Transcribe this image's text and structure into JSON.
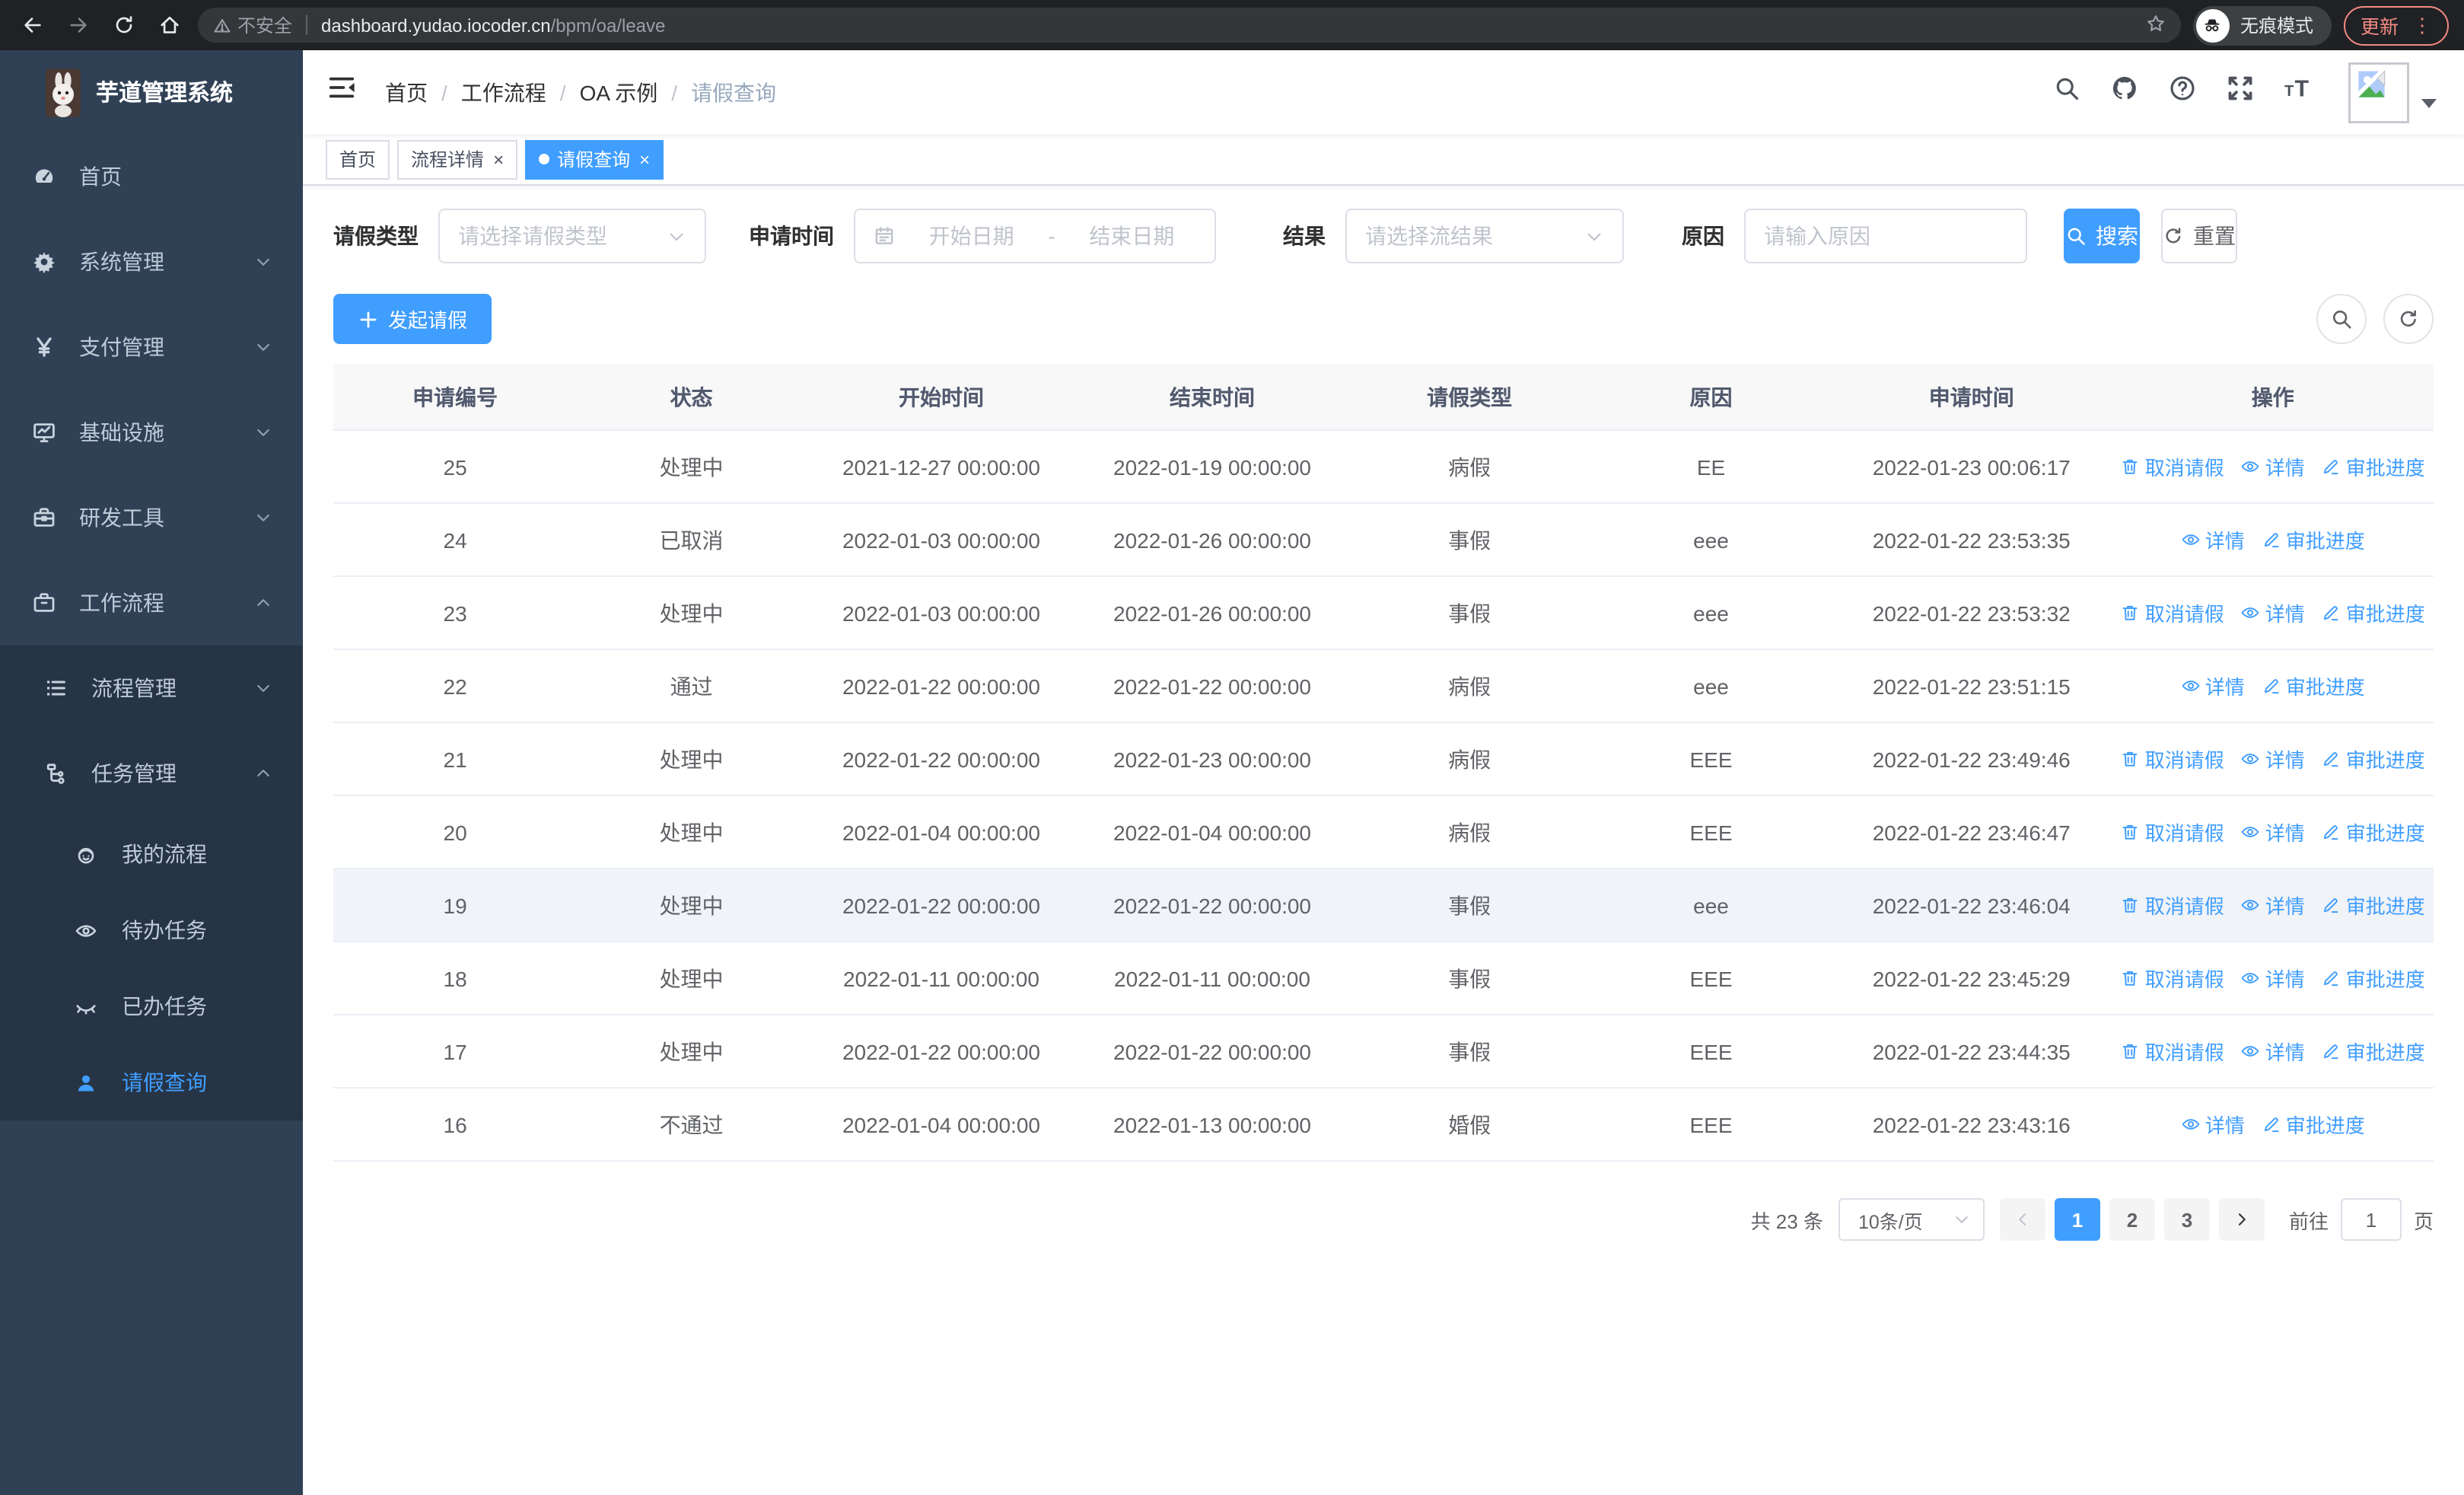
{
  "colors": {
    "primary": "#409EFF",
    "sidebar_bg": "#304156",
    "sidebar_submenu_bg": "#263445",
    "table_header_bg": "#f8f8f9",
    "chrome_bg": "#202124",
    "update_accent": "#f28b82",
    "action_link": "#409EFF"
  },
  "browser": {
    "security_label": "不安全",
    "url_host": "dashboard.yudao.iocoder.cn",
    "url_path": "/bpm/oa/leave",
    "incognito_label": "无痕模式",
    "update_label": "更新",
    "menu_dots": "⋮"
  },
  "app": {
    "logo_title": "芋道管理系统"
  },
  "breadcrumb": {
    "items": [
      "首页",
      "工作流程",
      "OA 示例",
      "请假查询"
    ],
    "separator": "/"
  },
  "sidebar": {
    "items": [
      {
        "key": "home",
        "label": "首页",
        "icon": "dashboard-icon",
        "level": 1,
        "chevron": "",
        "active": false
      },
      {
        "key": "system",
        "label": "系统管理",
        "icon": "gear-icon",
        "level": 1,
        "chevron": "down",
        "active": false
      },
      {
        "key": "payment",
        "label": "支付管理",
        "icon": "yen-icon",
        "level": 1,
        "chevron": "down",
        "active": false
      },
      {
        "key": "infrastructure",
        "label": "基础设施",
        "icon": "monitor-icon",
        "level": 1,
        "chevron": "down",
        "active": false
      },
      {
        "key": "dev-tools",
        "label": "研发工具",
        "icon": "toolbox-icon",
        "level": 1,
        "chevron": "down",
        "active": false
      },
      {
        "key": "workflow",
        "label": "工作流程",
        "icon": "briefcase-icon",
        "level": 1,
        "chevron": "up",
        "active": false
      },
      {
        "key": "process-management",
        "label": "流程管理",
        "icon": "tree-list-icon",
        "level": 2,
        "chevron": "down",
        "active": false
      },
      {
        "key": "task-management",
        "label": "任务管理",
        "icon": "org-icon",
        "level": 2,
        "chevron": "up",
        "active": false
      },
      {
        "key": "my-process",
        "label": "我的流程",
        "icon": "face-icon",
        "level": 3,
        "chevron": "",
        "active": false
      },
      {
        "key": "todo-task",
        "label": "待办任务",
        "icon": "eye-open-icon",
        "level": 3,
        "chevron": "",
        "active": false
      },
      {
        "key": "done-task",
        "label": "已办任务",
        "icon": "eye-closed-icon",
        "level": 3,
        "chevron": "",
        "active": false
      },
      {
        "key": "leave-query",
        "label": "请假查询",
        "icon": "user-icon",
        "level": 3,
        "chevron": "",
        "active": true
      }
    ]
  },
  "tabs": [
    {
      "key": "home",
      "label": "首页",
      "closable": false,
      "active": false
    },
    {
      "key": "process-detail",
      "label": "流程详情",
      "closable": true,
      "active": false
    },
    {
      "key": "leave-query",
      "label": "请假查询",
      "closable": true,
      "active": true
    }
  ],
  "filters": {
    "leave_type_label": "请假类型",
    "leave_type_placeholder": "请选择请假类型",
    "apply_time_label": "申请时间",
    "start_date_placeholder": "开始日期",
    "range_separator": "-",
    "end_date_placeholder": "结束日期",
    "result_label": "结果",
    "result_placeholder": "请选择流结果",
    "reason_label": "原因",
    "reason_placeholder": "请输入原因",
    "search_label": "搜索",
    "reset_label": "重置"
  },
  "toolbar": {
    "create_label": "发起请假"
  },
  "table": {
    "columns": [
      "申请编号",
      "状态",
      "开始时间",
      "结束时间",
      "请假类型",
      "原因",
      "申请时间",
      "操作"
    ],
    "action_labels": {
      "cancel": "取消请假",
      "detail": "详情",
      "progress": "审批进度"
    },
    "action_icons": {
      "cancel": "trash-icon",
      "detail": "view-icon",
      "progress": "edit-icon"
    },
    "rows": [
      {
        "id": "25",
        "status": "处理中",
        "start": "2021-12-27 00:00:00",
        "end": "2022-01-19 00:00:00",
        "type": "病假",
        "reason": "EE",
        "apply_time": "2022-01-23 00:06:17",
        "actions": [
          "cancel",
          "detail",
          "progress"
        ],
        "highlight": false
      },
      {
        "id": "24",
        "status": "已取消",
        "start": "2022-01-03 00:00:00",
        "end": "2022-01-26 00:00:00",
        "type": "事假",
        "reason": "eee",
        "apply_time": "2022-01-22 23:53:35",
        "actions": [
          "detail",
          "progress"
        ],
        "highlight": false
      },
      {
        "id": "23",
        "status": "处理中",
        "start": "2022-01-03 00:00:00",
        "end": "2022-01-26 00:00:00",
        "type": "事假",
        "reason": "eee",
        "apply_time": "2022-01-22 23:53:32",
        "actions": [
          "cancel",
          "detail",
          "progress"
        ],
        "highlight": false
      },
      {
        "id": "22",
        "status": "通过",
        "start": "2022-01-22 00:00:00",
        "end": "2022-01-22 00:00:00",
        "type": "病假",
        "reason": "eee",
        "apply_time": "2022-01-22 23:51:15",
        "actions": [
          "detail",
          "progress"
        ],
        "highlight": false
      },
      {
        "id": "21",
        "status": "处理中",
        "start": "2022-01-22 00:00:00",
        "end": "2022-01-23 00:00:00",
        "type": "病假",
        "reason": "EEE",
        "apply_time": "2022-01-22 23:49:46",
        "actions": [
          "cancel",
          "detail",
          "progress"
        ],
        "highlight": false
      },
      {
        "id": "20",
        "status": "处理中",
        "start": "2022-01-04 00:00:00",
        "end": "2022-01-04 00:00:00",
        "type": "病假",
        "reason": "EEE",
        "apply_time": "2022-01-22 23:46:47",
        "actions": [
          "cancel",
          "detail",
          "progress"
        ],
        "highlight": false
      },
      {
        "id": "19",
        "status": "处理中",
        "start": "2022-01-22 00:00:00",
        "end": "2022-01-22 00:00:00",
        "type": "事假",
        "reason": "eee",
        "apply_time": "2022-01-22 23:46:04",
        "actions": [
          "cancel",
          "detail",
          "progress"
        ],
        "highlight": true
      },
      {
        "id": "18",
        "status": "处理中",
        "start": "2022-01-11 00:00:00",
        "end": "2022-01-11 00:00:00",
        "type": "事假",
        "reason": "EEE",
        "apply_time": "2022-01-22 23:45:29",
        "actions": [
          "cancel",
          "detail",
          "progress"
        ],
        "highlight": false
      },
      {
        "id": "17",
        "status": "处理中",
        "start": "2022-01-22 00:00:00",
        "end": "2022-01-22 00:00:00",
        "type": "事假",
        "reason": "EEE",
        "apply_time": "2022-01-22 23:44:35",
        "actions": [
          "cancel",
          "detail",
          "progress"
        ],
        "highlight": false
      },
      {
        "id": "16",
        "status": "不通过",
        "start": "2022-01-04 00:00:00",
        "end": "2022-01-13 00:00:00",
        "type": "婚假",
        "reason": "EEE",
        "apply_time": "2022-01-22 23:43:16",
        "actions": [
          "detail",
          "progress"
        ],
        "highlight": false
      }
    ]
  },
  "pagination": {
    "total_label": "共 23 条",
    "page_size_value": "10条/页",
    "pages": [
      "1",
      "2",
      "3"
    ],
    "active_page": "1",
    "goto_label": "前往",
    "goto_value": "1",
    "page_unit_label": "页"
  }
}
